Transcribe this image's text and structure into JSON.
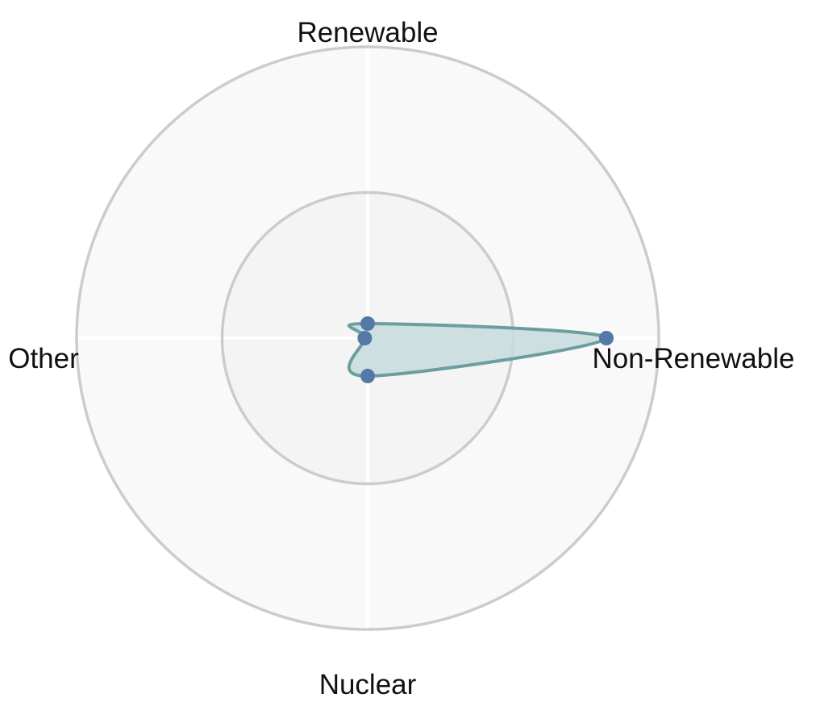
{
  "chart_data": {
    "type": "radar",
    "title": "",
    "axes": [
      "Renewable",
      "Non-Renewable",
      "Nuclear",
      "Other"
    ],
    "rmax": 100,
    "gridlines": [
      50,
      100
    ],
    "series": [
      {
        "values": [
          5,
          82,
          13,
          1
        ]
      }
    ],
    "colors": {
      "outer_band": "#f9f9f9",
      "inner_band": "#f4f4f4",
      "ring": "#cccccc",
      "spoke": "#ffffff",
      "fill": "#c5dadc",
      "line": "#6c9ea0",
      "marker": "#5479a8"
    }
  }
}
